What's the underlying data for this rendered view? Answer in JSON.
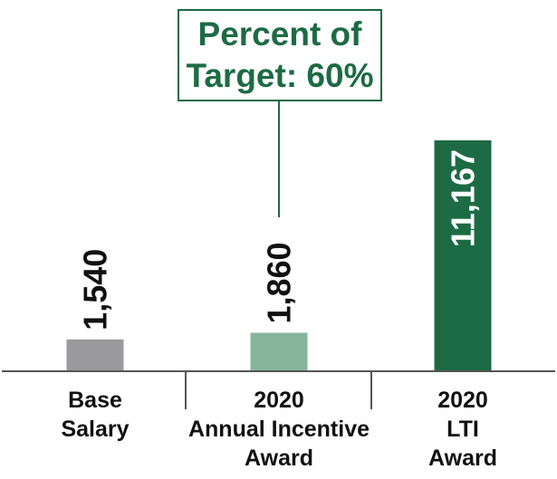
{
  "chart_data": {
    "type": "bar",
    "categories": [
      [
        "Base",
        "Salary"
      ],
      [
        "2020",
        "Annual Incentive",
        "Award"
      ],
      [
        "2020",
        "LTI",
        "Award"
      ]
    ],
    "values": [
      1540,
      1860,
      11167
    ],
    "value_labels": [
      "1,540",
      "1,860",
      "11,167"
    ],
    "bar_colors": [
      "#9a9a9c",
      "#86b59c",
      "#1d6b45"
    ],
    "value_label_colors": [
      "#111111",
      "#111111",
      "#ffffff"
    ],
    "callout": {
      "lines": [
        "Percent of",
        "Target: 60%"
      ],
      "points_to_category": 1
    },
    "accent_color": "#1d6b45",
    "title": "",
    "xlabel": "",
    "ylabel": "",
    "ylim": [
      0,
      11167
    ],
    "grid": false,
    "legend": "none"
  }
}
